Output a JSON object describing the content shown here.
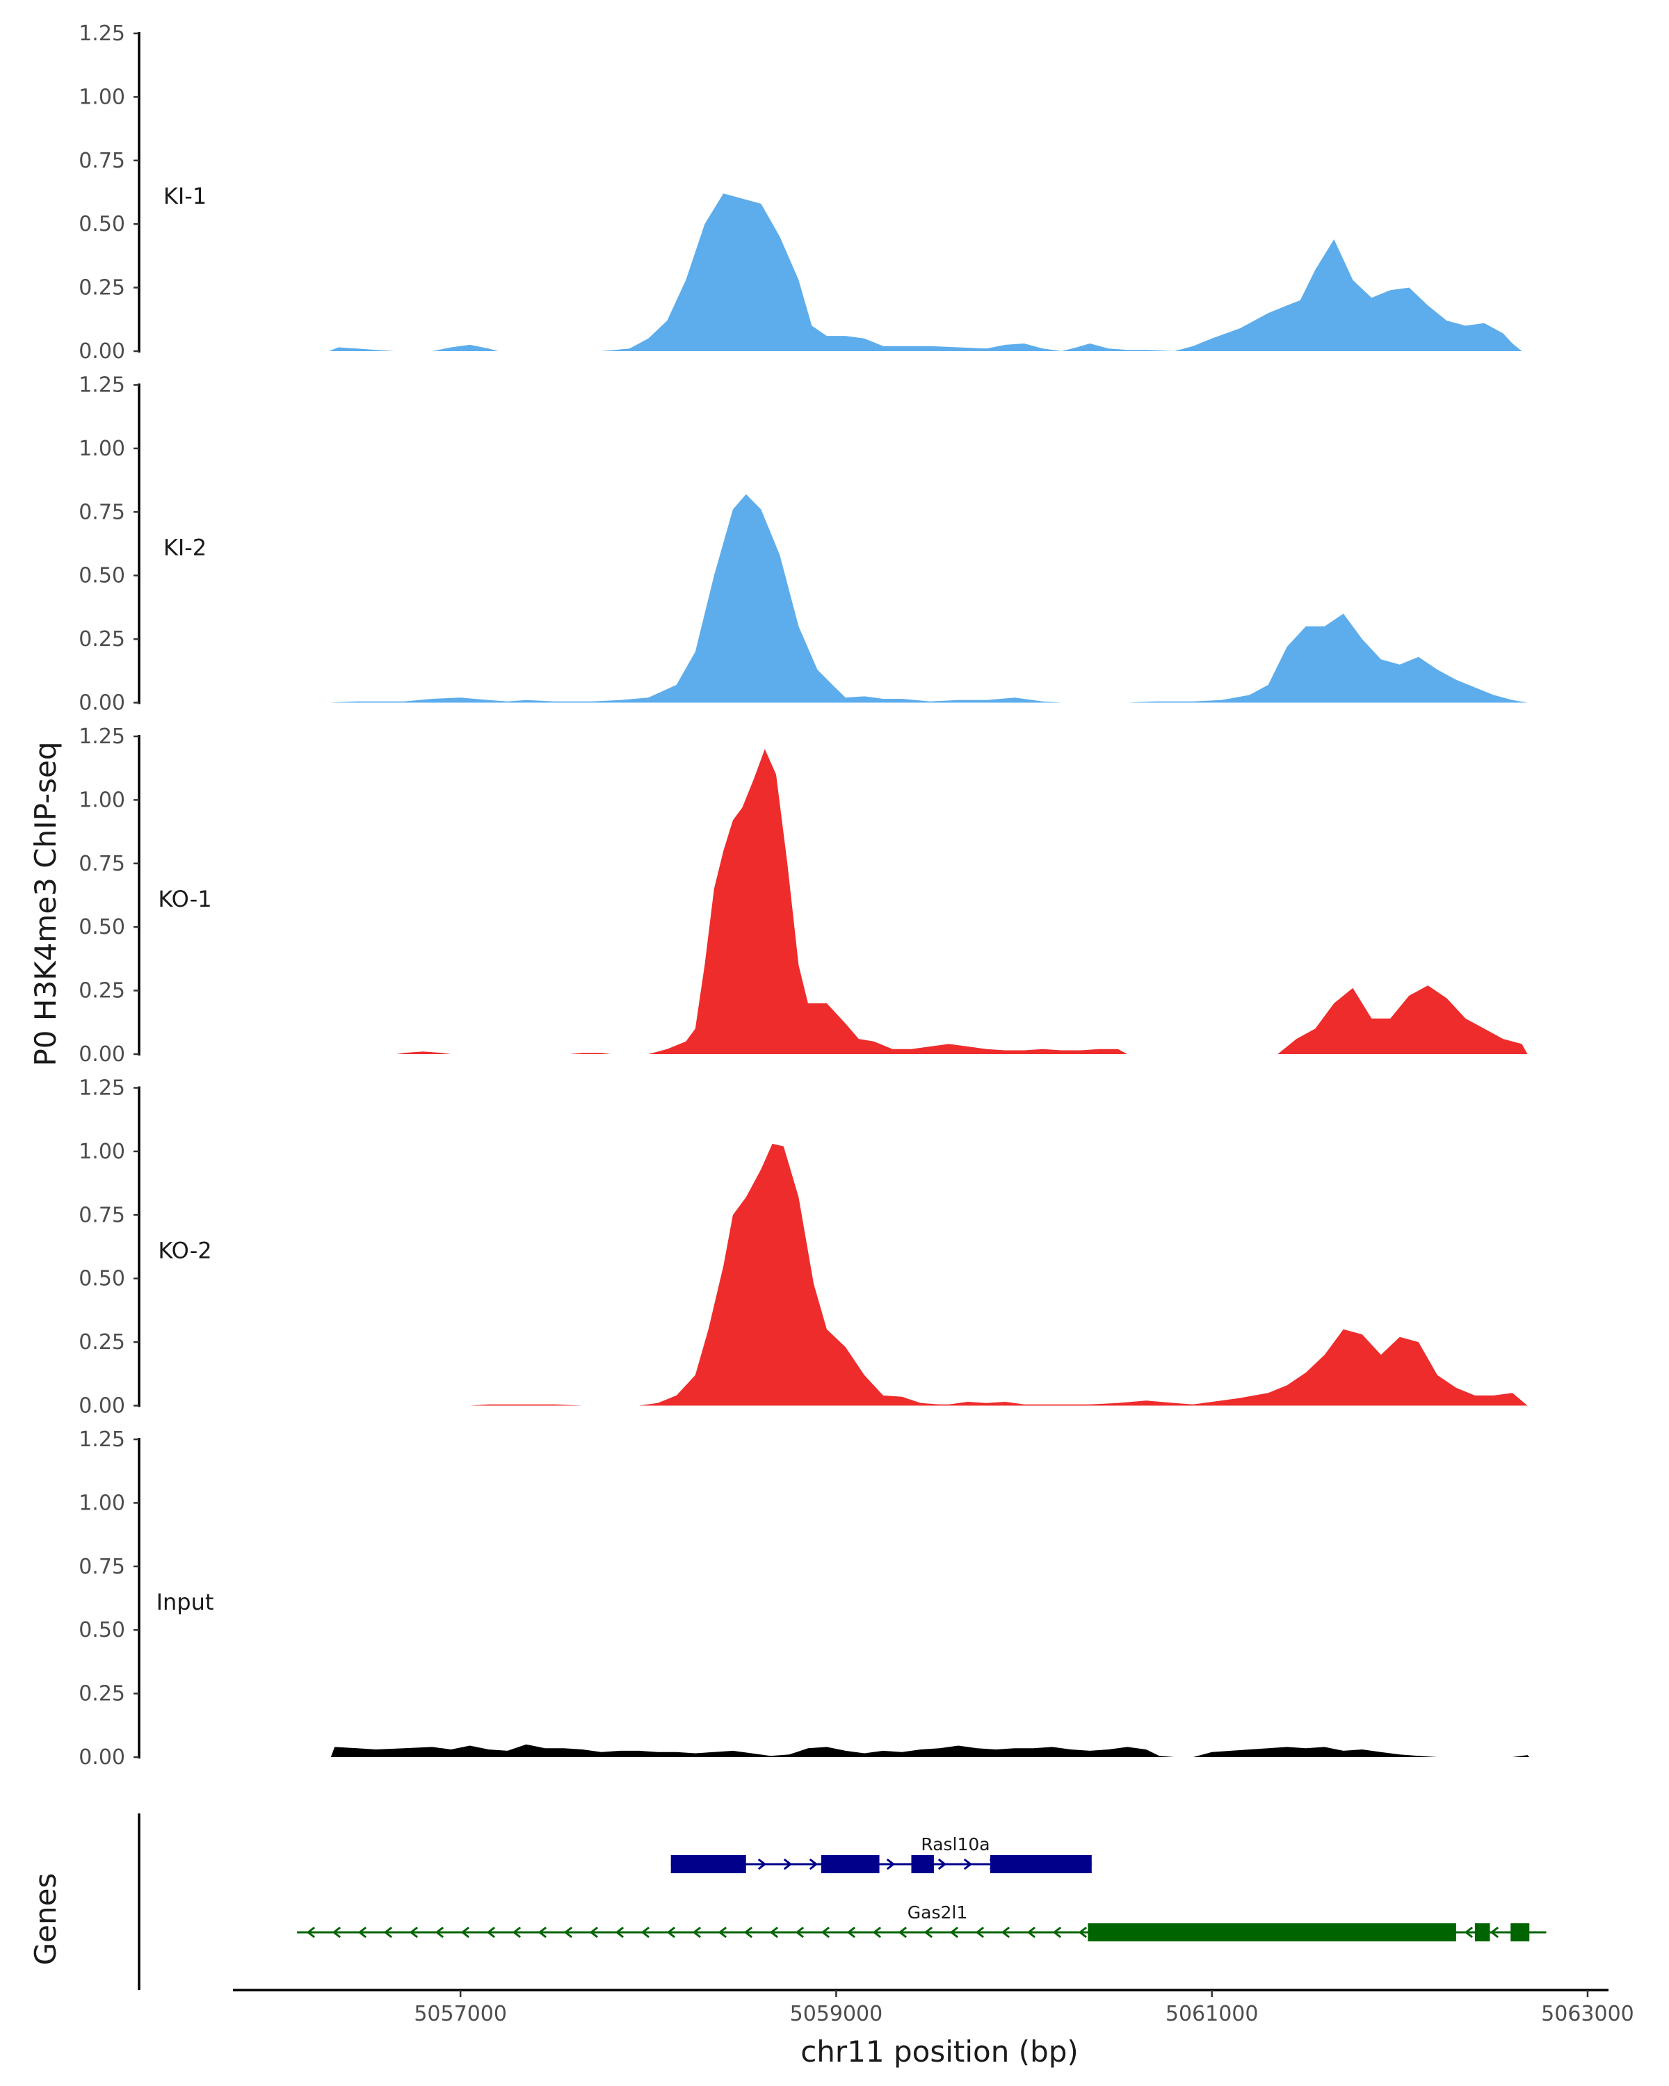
{
  "chart_data": {
    "type": "area",
    "title": "",
    "ylabel": "P0 H3K4me3 ChIP-seq",
    "xlabel": "chr11 position (bp)",
    "genes_label": "Genes",
    "xlim": [
      5055800,
      5063300
    ],
    "ylim": [
      0,
      1.25
    ],
    "y_ticks": [
      0,
      0.25,
      0.5,
      0.75,
      1.0,
      1.25
    ],
    "y_tick_labels": [
      "0.00",
      "0.25",
      "0.50",
      "0.75",
      "1.00",
      "1.25"
    ],
    "x_ticks": [
      5057000,
      5059000,
      5061000,
      5063000
    ],
    "x_tick_labels": [
      "5057000",
      "5059000",
      "5061000",
      "5063000"
    ],
    "tracks": [
      {
        "name": "KI-1",
        "color": "#5DADEC",
        "points": [
          [
            5056300,
            0
          ],
          [
            5056350,
            0.015
          ],
          [
            5056450,
            0.01
          ],
          [
            5056550,
            0.005
          ],
          [
            5056650,
            0
          ],
          [
            5056850,
            0
          ],
          [
            5056950,
            0.015
          ],
          [
            5057050,
            0.025
          ],
          [
            5057150,
            0.01
          ],
          [
            5057200,
            0
          ],
          [
            5057750,
            0
          ],
          [
            5057900,
            0.01
          ],
          [
            5058000,
            0.05
          ],
          [
            5058100,
            0.12
          ],
          [
            5058200,
            0.28
          ],
          [
            5058300,
            0.5
          ],
          [
            5058400,
            0.62
          ],
          [
            5058500,
            0.6
          ],
          [
            5058600,
            0.58
          ],
          [
            5058700,
            0.45
          ],
          [
            5058800,
            0.28
          ],
          [
            5058870,
            0.1
          ],
          [
            5058950,
            0.06
          ],
          [
            5059050,
            0.06
          ],
          [
            5059150,
            0.05
          ],
          [
            5059250,
            0.02
          ],
          [
            5059350,
            0.02
          ],
          [
            5059500,
            0.02
          ],
          [
            5059650,
            0.015
          ],
          [
            5059800,
            0.01
          ],
          [
            5059900,
            0.025
          ],
          [
            5060000,
            0.03
          ],
          [
            5060100,
            0.01
          ],
          [
            5060200,
            0
          ],
          [
            5060280,
            0.015
          ],
          [
            5060350,
            0.03
          ],
          [
            5060450,
            0.01
          ],
          [
            5060550,
            0.005
          ],
          [
            5060650,
            0.005
          ],
          [
            5060800,
            0
          ],
          [
            5060900,
            0.02
          ],
          [
            5061000,
            0.05
          ],
          [
            5061150,
            0.09
          ],
          [
            5061300,
            0.15
          ],
          [
            5061400,
            0.18
          ],
          [
            5061470,
            0.2
          ],
          [
            5061550,
            0.32
          ],
          [
            5061650,
            0.44
          ],
          [
            5061750,
            0.28
          ],
          [
            5061850,
            0.21
          ],
          [
            5061950,
            0.24
          ],
          [
            5062050,
            0.25
          ],
          [
            5062150,
            0.18
          ],
          [
            5062250,
            0.12
          ],
          [
            5062350,
            0.1
          ],
          [
            5062450,
            0.11
          ],
          [
            5062550,
            0.07
          ],
          [
            5062600,
            0.03
          ],
          [
            5062650,
            0
          ]
        ]
      },
      {
        "name": "KI-2",
        "color": "#5DADEC",
        "points": [
          [
            5056300,
            0
          ],
          [
            5056450,
            0.005
          ],
          [
            5056700,
            0.005
          ],
          [
            5056850,
            0.015
          ],
          [
            5057000,
            0.02
          ],
          [
            5057150,
            0.01
          ],
          [
            5057250,
            0.005
          ],
          [
            5057350,
            0.01
          ],
          [
            5057500,
            0.005
          ],
          [
            5057700,
            0.005
          ],
          [
            5057850,
            0.01
          ],
          [
            5058000,
            0.02
          ],
          [
            5058150,
            0.07
          ],
          [
            5058250,
            0.2
          ],
          [
            5058350,
            0.5
          ],
          [
            5058450,
            0.76
          ],
          [
            5058520,
            0.82
          ],
          [
            5058600,
            0.76
          ],
          [
            5058700,
            0.58
          ],
          [
            5058800,
            0.3
          ],
          [
            5058900,
            0.13
          ],
          [
            5058980,
            0.07
          ],
          [
            5059050,
            0.02
          ],
          [
            5059150,
            0.025
          ],
          [
            5059250,
            0.015
          ],
          [
            5059350,
            0.015
          ],
          [
            5059500,
            0.005
          ],
          [
            5059650,
            0.01
          ],
          [
            5059800,
            0.01
          ],
          [
            5059950,
            0.02
          ],
          [
            5060100,
            0.005
          ],
          [
            5060200,
            0
          ],
          [
            5060550,
            0
          ],
          [
            5060700,
            0.005
          ],
          [
            5060900,
            0.005
          ],
          [
            5061050,
            0.01
          ],
          [
            5061200,
            0.03
          ],
          [
            5061300,
            0.07
          ],
          [
            5061400,
            0.22
          ],
          [
            5061500,
            0.3
          ],
          [
            5061600,
            0.3
          ],
          [
            5061700,
            0.35
          ],
          [
            5061800,
            0.25
          ],
          [
            5061900,
            0.17
          ],
          [
            5062000,
            0.15
          ],
          [
            5062100,
            0.18
          ],
          [
            5062200,
            0.13
          ],
          [
            5062300,
            0.09
          ],
          [
            5062400,
            0.06
          ],
          [
            5062500,
            0.03
          ],
          [
            5062600,
            0.01
          ],
          [
            5062680,
            0
          ]
        ]
      },
      {
        "name": "KO-1",
        "color": "#EE2C2C",
        "points": [
          [
            5056660,
            0
          ],
          [
            5056700,
            0.005
          ],
          [
            5056800,
            0.01
          ],
          [
            5056900,
            0.005
          ],
          [
            5056950,
            0
          ],
          [
            5057580,
            0
          ],
          [
            5057650,
            0.005
          ],
          [
            5057750,
            0.005
          ],
          [
            5057800,
            0
          ],
          [
            5058000,
            0
          ],
          [
            5058100,
            0.02
          ],
          [
            5058200,
            0.05
          ],
          [
            5058250,
            0.1
          ],
          [
            5058300,
            0.35
          ],
          [
            5058350,
            0.65
          ],
          [
            5058400,
            0.8
          ],
          [
            5058450,
            0.92
          ],
          [
            5058500,
            0.97
          ],
          [
            5058560,
            1.08
          ],
          [
            5058620,
            1.2
          ],
          [
            5058680,
            1.1
          ],
          [
            5058740,
            0.75
          ],
          [
            5058800,
            0.35
          ],
          [
            5058850,
            0.2
          ],
          [
            5058950,
            0.2
          ],
          [
            5059050,
            0.12
          ],
          [
            5059120,
            0.06
          ],
          [
            5059200,
            0.05
          ],
          [
            5059300,
            0.02
          ],
          [
            5059400,
            0.02
          ],
          [
            5059500,
            0.03
          ],
          [
            5059600,
            0.04
          ],
          [
            5059700,
            0.03
          ],
          [
            5059800,
            0.02
          ],
          [
            5059900,
            0.015
          ],
          [
            5060000,
            0.015
          ],
          [
            5060100,
            0.02
          ],
          [
            5060200,
            0.015
          ],
          [
            5060300,
            0.015
          ],
          [
            5060400,
            0.02
          ],
          [
            5060500,
            0.02
          ],
          [
            5060550,
            0
          ],
          [
            5061350,
            0
          ],
          [
            5061450,
            0.06
          ],
          [
            5061550,
            0.1
          ],
          [
            5061650,
            0.2
          ],
          [
            5061750,
            0.26
          ],
          [
            5061850,
            0.14
          ],
          [
            5061950,
            0.14
          ],
          [
            5062050,
            0.23
          ],
          [
            5062150,
            0.27
          ],
          [
            5062250,
            0.22
          ],
          [
            5062350,
            0.14
          ],
          [
            5062450,
            0.1
          ],
          [
            5062550,
            0.06
          ],
          [
            5062650,
            0.04
          ],
          [
            5062680,
            0
          ]
        ]
      },
      {
        "name": "KO-2",
        "color": "#EE2C2C",
        "points": [
          [
            5057050,
            0
          ],
          [
            5057150,
            0.005
          ],
          [
            5057300,
            0.005
          ],
          [
            5057500,
            0.005
          ],
          [
            5057650,
            0
          ],
          [
            5057950,
            0
          ],
          [
            5058050,
            0.01
          ],
          [
            5058150,
            0.04
          ],
          [
            5058250,
            0.12
          ],
          [
            5058320,
            0.3
          ],
          [
            5058400,
            0.55
          ],
          [
            5058450,
            0.75
          ],
          [
            5058520,
            0.82
          ],
          [
            5058600,
            0.93
          ],
          [
            5058660,
            1.03
          ],
          [
            5058720,
            1.02
          ],
          [
            5058800,
            0.82
          ],
          [
            5058880,
            0.48
          ],
          [
            5058950,
            0.3
          ],
          [
            5059050,
            0.23
          ],
          [
            5059150,
            0.12
          ],
          [
            5059250,
            0.04
          ],
          [
            5059350,
            0.035
          ],
          [
            5059450,
            0.01
          ],
          [
            5059550,
            0.005
          ],
          [
            5059600,
            0.005
          ],
          [
            5059700,
            0.015
          ],
          [
            5059800,
            0.01
          ],
          [
            5059900,
            0.015
          ],
          [
            5060000,
            0.005
          ],
          [
            5060100,
            0.005
          ],
          [
            5060250,
            0.005
          ],
          [
            5060350,
            0.005
          ],
          [
            5060500,
            0.01
          ],
          [
            5060650,
            0.02
          ],
          [
            5060800,
            0.01
          ],
          [
            5060900,
            0.005
          ],
          [
            5061050,
            0.02
          ],
          [
            5061150,
            0.03
          ],
          [
            5061300,
            0.05
          ],
          [
            5061400,
            0.08
          ],
          [
            5061500,
            0.13
          ],
          [
            5061600,
            0.2
          ],
          [
            5061700,
            0.3
          ],
          [
            5061800,
            0.28
          ],
          [
            5061900,
            0.2
          ],
          [
            5062000,
            0.27
          ],
          [
            5062100,
            0.25
          ],
          [
            5062200,
            0.12
          ],
          [
            5062300,
            0.07
          ],
          [
            5062400,
            0.04
          ],
          [
            5062500,
            0.04
          ],
          [
            5062600,
            0.05
          ],
          [
            5062680,
            0
          ]
        ]
      },
      {
        "name": "Input",
        "color": "#000000",
        "points": [
          [
            5056310,
            0
          ],
          [
            5056330,
            0.04
          ],
          [
            5056450,
            0.035
          ],
          [
            5056550,
            0.03
          ],
          [
            5056700,
            0.035
          ],
          [
            5056850,
            0.04
          ],
          [
            5056950,
            0.03
          ],
          [
            5057050,
            0.045
          ],
          [
            5057150,
            0.03
          ],
          [
            5057250,
            0.025
          ],
          [
            5057350,
            0.05
          ],
          [
            5057450,
            0.035
          ],
          [
            5057550,
            0.035
          ],
          [
            5057650,
            0.03
          ],
          [
            5057750,
            0.02
          ],
          [
            5057850,
            0.025
          ],
          [
            5057950,
            0.025
          ],
          [
            5058050,
            0.02
          ],
          [
            5058150,
            0.02
          ],
          [
            5058250,
            0.015
          ],
          [
            5058350,
            0.02
          ],
          [
            5058450,
            0.025
          ],
          [
            5058550,
            0.015
          ],
          [
            5058650,
            0.005
          ],
          [
            5058750,
            0.01
          ],
          [
            5058850,
            0.035
          ],
          [
            5058950,
            0.04
          ],
          [
            5059050,
            0.025
          ],
          [
            5059150,
            0.015
          ],
          [
            5059250,
            0.025
          ],
          [
            5059350,
            0.02
          ],
          [
            5059450,
            0.03
          ],
          [
            5059550,
            0.035
          ],
          [
            5059650,
            0.045
          ],
          [
            5059750,
            0.035
          ],
          [
            5059850,
            0.03
          ],
          [
            5059950,
            0.035
          ],
          [
            5060050,
            0.035
          ],
          [
            5060150,
            0.04
          ],
          [
            5060250,
            0.03
          ],
          [
            5060350,
            0.025
          ],
          [
            5060450,
            0.03
          ],
          [
            5060550,
            0.04
          ],
          [
            5060650,
            0.03
          ],
          [
            5060720,
            0.005
          ],
          [
            5060800,
            0
          ],
          [
            5060900,
            0
          ],
          [
            5061000,
            0.02
          ],
          [
            5061100,
            0.025
          ],
          [
            5061200,
            0.03
          ],
          [
            5061300,
            0.035
          ],
          [
            5061400,
            0.04
          ],
          [
            5061500,
            0.035
          ],
          [
            5061600,
            0.04
          ],
          [
            5061700,
            0.025
          ],
          [
            5061800,
            0.03
          ],
          [
            5061900,
            0.02
          ],
          [
            5062000,
            0.01
          ],
          [
            5062100,
            0.005
          ],
          [
            5062200,
            0
          ],
          [
            5062600,
            0
          ],
          [
            5062680,
            0.008
          ],
          [
            5062690,
            0
          ]
        ]
      }
    ],
    "genes": [
      {
        "name": "Rasl10a",
        "color": "#00008B",
        "strand": "+",
        "start": 5058120,
        "end": 5060360,
        "exons": [
          [
            5058120,
            5058520
          ],
          [
            5058920,
            5059230
          ],
          [
            5059400,
            5059520
          ],
          [
            5059820,
            5060360
          ]
        ]
      },
      {
        "name": "Gas2l1",
        "color": "#006400",
        "strand": "-",
        "start": 5056130,
        "end": 5062780,
        "exons": [
          [
            5060340,
            5062300
          ],
          [
            5062400,
            5062480
          ],
          [
            5062590,
            5062690
          ]
        ]
      }
    ]
  }
}
